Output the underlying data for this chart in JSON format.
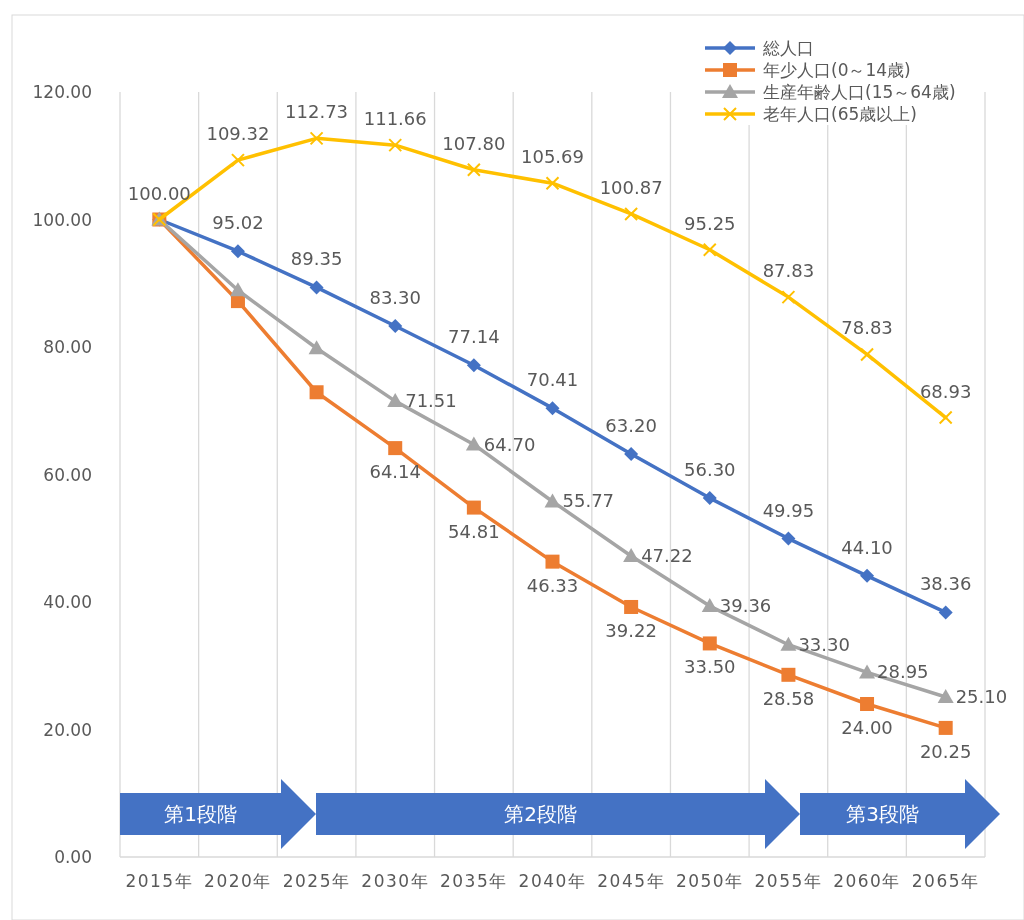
{
  "chart_data": {
    "type": "line",
    "categories": [
      "2015年",
      "2020年",
      "2025年",
      "2030年",
      "2035年",
      "2040年",
      "2045年",
      "2050年",
      "2055年",
      "2060年",
      "2065年"
    ],
    "series": [
      {
        "name": "総人口",
        "color": "#4472c4",
        "marker": "diamond",
        "values": [
          100.0,
          95.02,
          89.35,
          83.3,
          77.14,
          70.41,
          63.2,
          56.3,
          49.95,
          44.1,
          38.36
        ],
        "value_labels": [
          null,
          "95.02",
          "89.35",
          "83.30",
          "77.14",
          "70.41",
          "63.20",
          "56.30",
          "49.95",
          "44.10",
          "38.36"
        ]
      },
      {
        "name": "年少人口(0～14歳)",
        "color": "#ed7d31",
        "marker": "square",
        "values": [
          100.0,
          87.2,
          72.9,
          64.14,
          54.81,
          46.33,
          39.22,
          33.5,
          28.58,
          24.0,
          20.25
        ],
        "value_labels": [
          null,
          null,
          null,
          "64.14",
          "54.81",
          "46.33",
          "39.22",
          "33.50",
          "28.58",
          "24.00",
          "20.25"
        ]
      },
      {
        "name": "生産年齢人口(15～64歳)",
        "color": "#a5a5a5",
        "marker": "triangle",
        "values": [
          100.0,
          88.9,
          79.8,
          71.51,
          64.7,
          55.77,
          47.22,
          39.36,
          33.3,
          28.95,
          25.1
        ],
        "value_labels": [
          null,
          null,
          null,
          "71.51",
          "64.70",
          "55.77",
          "47.22",
          "39.36",
          "33.30",
          "28.95",
          "25.10"
        ]
      },
      {
        "name": "老年人口(65歳以上)",
        "color": "#ffc000",
        "marker": "cross",
        "values": [
          100.0,
          109.32,
          112.73,
          111.66,
          107.8,
          105.69,
          100.87,
          95.25,
          87.83,
          78.83,
          68.93
        ],
        "value_labels": [
          "100.00",
          "109.32",
          "112.73",
          "111.66",
          "107.80",
          "105.69",
          "100.87",
          "95.25",
          "87.83",
          "78.83",
          "68.93"
        ]
      }
    ],
    "ylim": [
      0,
      120
    ],
    "yticks": [
      {
        "value": 0,
        "label": "0.00"
      },
      {
        "value": 20,
        "label": "20.00"
      },
      {
        "value": 40,
        "label": "40.00"
      },
      {
        "value": 60,
        "label": "60.00"
      },
      {
        "value": 80,
        "label": "80.00"
      },
      {
        "value": 100,
        "label": "100.00"
      },
      {
        "value": 120,
        "label": "120.00"
      }
    ],
    "annotations": [
      "第1段階",
      "第2段階",
      "第3段階"
    ],
    "grid": "x",
    "legend": "top right",
    "line_style": "solid"
  }
}
